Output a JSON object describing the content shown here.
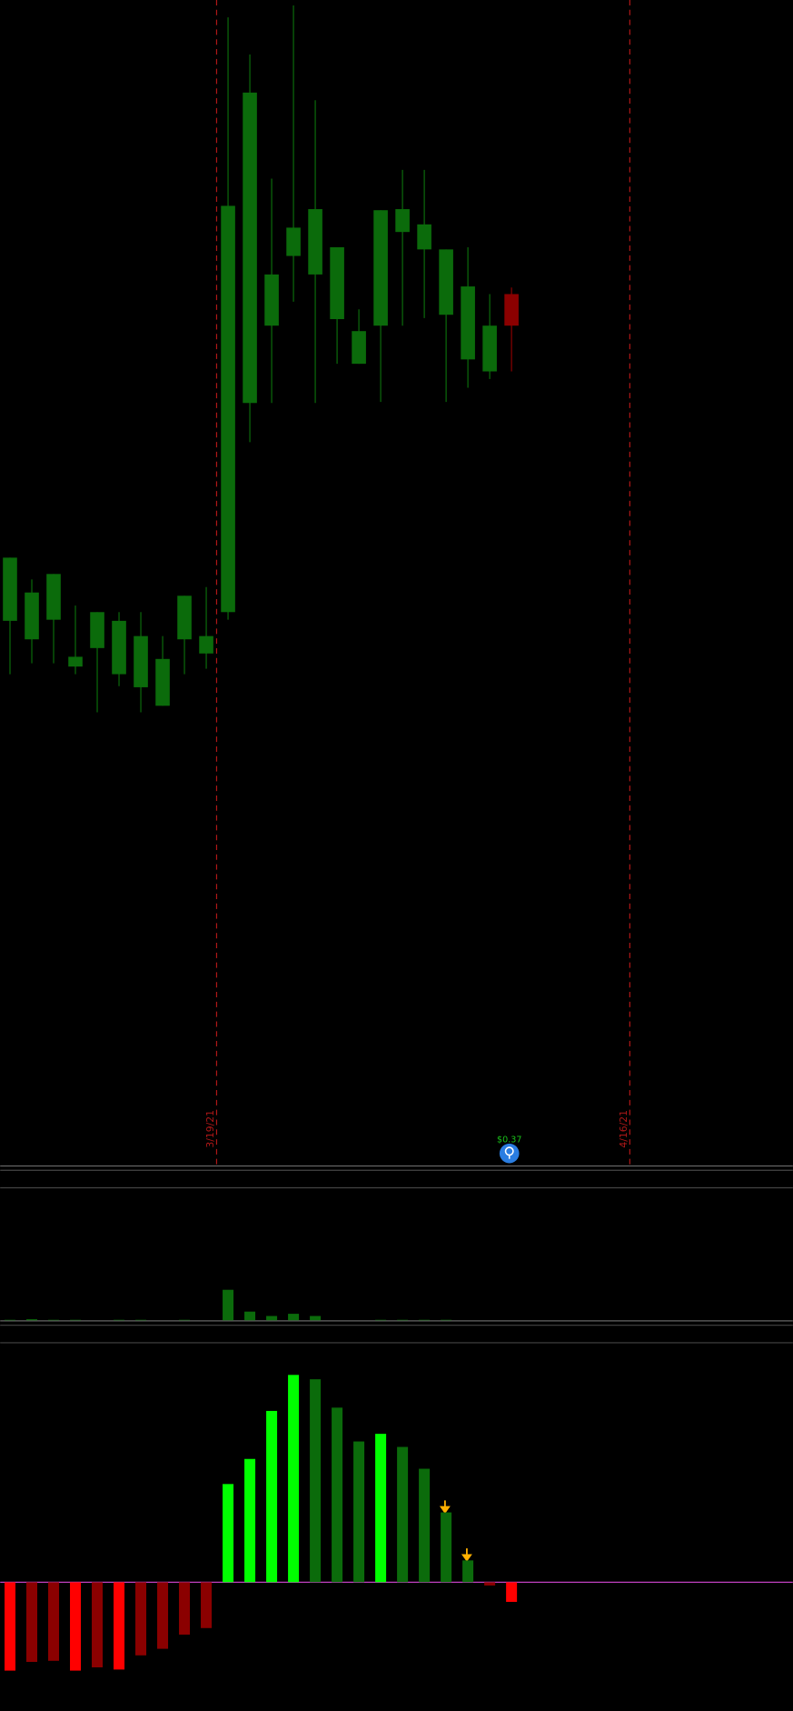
{
  "chart_data": [
    {
      "type": "candlestick",
      "up_color": "#0b6b0b",
      "down_color": "#8b0000",
      "open": [
        50.0,
        48.3,
        50.1,
        45.8,
        47.5,
        45.1,
        43.9,
        42.2,
        48.3,
        47.0,
        50.8,
        70.0,
        77.1,
        83.5,
        81.8,
        77.7,
        73.6,
        77.1,
        85.7,
        84.1,
        78.1,
        74.0,
        72.9,
        80.0
      ],
      "high": [
        55.8,
        53.8,
        54.3,
        51.4,
        50.8,
        50.8,
        50.8,
        48.6,
        52.3,
        53.1,
        105.4,
        102.0,
        90.6,
        106.5,
        97.8,
        84.3,
        78.6,
        87.7,
        91.4,
        91.4,
        84.1,
        84.3,
        80.0,
        80.6
      ],
      "low": [
        45.1,
        46.1,
        46.1,
        45.1,
        41.6,
        44.0,
        41.6,
        42.2,
        45.1,
        45.6,
        50.1,
        66.4,
        70.0,
        79.3,
        70.0,
        73.6,
        73.6,
        70.1,
        77.1,
        77.8,
        70.1,
        71.4,
        72.2,
        72.9
      ],
      "close": [
        55.8,
        52.6,
        54.3,
        46.7,
        50.8,
        50.0,
        48.6,
        46.5,
        52.3,
        48.6,
        88.1,
        98.5,
        81.8,
        86.1,
        87.8,
        84.3,
        76.6,
        87.7,
        87.8,
        86.4,
        84.1,
        80.7,
        77.1,
        77.1
      ],
      "ylim": [
        0,
        107
      ],
      "markers": [
        "3/19/21",
        "4/16/21"
      ],
      "event_label": "$0.37"
    },
    {
      "type": "bar",
      "color": "#0b6b0b",
      "values": [
        0.5,
        1,
        0.5,
        0.5,
        0,
        0.5,
        0.5,
        0,
        0.5,
        0,
        28,
        8,
        4,
        6,
        4,
        0,
        0,
        0.5,
        0.5,
        0.5,
        0.5,
        0,
        0,
        0
      ],
      "ylim": [
        0,
        30
      ]
    },
    {
      "type": "bar",
      "zero_line_color": "#c040c0",
      "values": [
        -8.1,
        -7.3,
        -7.2,
        -8.1,
        -7.8,
        -8.0,
        -6.7,
        -6.1,
        -4.8,
        -4.2,
        9.0,
        11.3,
        15.7,
        19.0,
        18.6,
        16.0,
        12.9,
        13.6,
        12.4,
        10.4,
        6.4,
        2.0,
        -0.3,
        -1.8
      ],
      "colors": [
        "#ff0000",
        "#8b0000",
        "#8b0000",
        "#ff0000",
        "#8b0000",
        "#ff0000",
        "#8b0000",
        "#8b0000",
        "#8b0000",
        "#8b0000",
        "#00ff00",
        "#00ff00",
        "#00ff00",
        "#00ff00",
        "#0b6b0b",
        "#0b6b0b",
        "#0b6b0b",
        "#00ff00",
        "#0b6b0b",
        "#0b6b0b",
        "#0b6b0b",
        "#0b6b0b",
        "#8b0000",
        "#ff0000"
      ],
      "ylim": [
        -10,
        20
      ]
    }
  ]
}
